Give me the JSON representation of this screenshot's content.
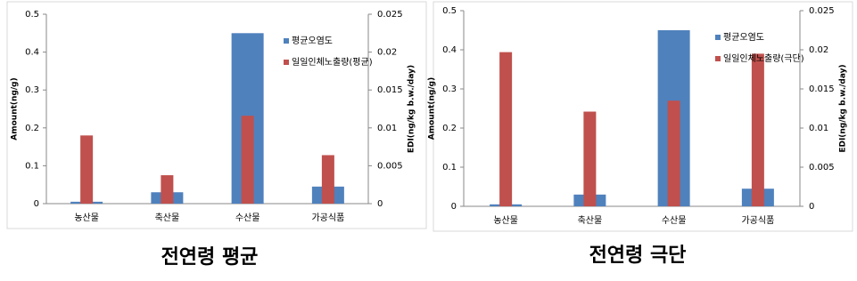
{
  "chart_data": [
    {
      "type": "bar",
      "title": "전연령 평균",
      "ylabel": "Amount(ng/g)",
      "y2label": "EDI(ng/kg b.w./day)",
      "categories": [
        "농산물",
        "축산물",
        "수산물",
        "가공식품"
      ],
      "series": [
        {
          "name": "평균오염도",
          "color": "#4f81bd",
          "values": [
            0.005,
            0.03,
            0.45,
            0.045
          ]
        },
        {
          "name": "일일인체노출량(평균)",
          "color": "#c0504d",
          "axis": "y2",
          "values": [
            0.009,
            0.00375,
            0.0116,
            0.0064
          ]
        }
      ],
      "ylim": [
        0,
        0.5
      ],
      "yticks": [
        0,
        0.1,
        0.2,
        0.3,
        0.4,
        0.5
      ],
      "y2lim": [
        0,
        0.025
      ],
      "y2ticks": [
        0,
        0.005,
        0.01,
        0.015,
        0.02,
        0.025
      ],
      "legend": "upper right"
    },
    {
      "type": "bar",
      "title": "전연령 극단",
      "ylabel": "Amount(ng/g)",
      "y2label": "EDI(ng/kg b.w./day)",
      "categories": [
        "농산물",
        "축산물",
        "수산물",
        "가공식품"
      ],
      "series": [
        {
          "name": "평균오염도",
          "color": "#4f81bd",
          "values": [
            0.005,
            0.03,
            0.45,
            0.045
          ]
        },
        {
          "name": "일일인체노출량(극단)",
          "color": "#c0504d",
          "axis": "y2",
          "values": [
            0.0197,
            0.0121,
            0.0135,
            0.0195
          ]
        }
      ],
      "ylim": [
        0,
        0.5
      ],
      "yticks": [
        0,
        0.1,
        0.2,
        0.3,
        0.4,
        0.5
      ],
      "y2lim": [
        0,
        0.025
      ],
      "y2ticks": [
        0,
        0.005,
        0.01,
        0.015,
        0.02,
        0.025
      ],
      "legend": "upper right"
    }
  ]
}
